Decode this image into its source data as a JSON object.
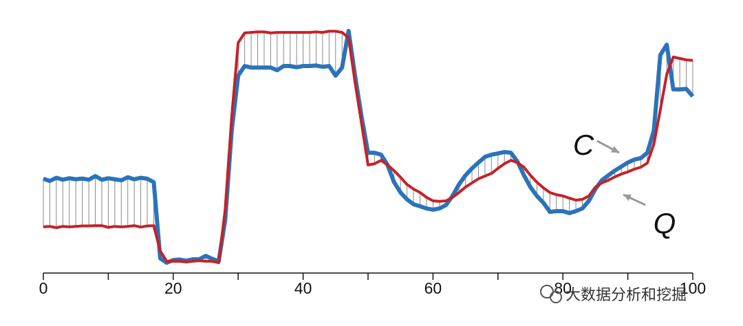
{
  "chart_data": {
    "type": "line",
    "x": [
      0,
      1,
      2,
      3,
      4,
      5,
      6,
      7,
      8,
      9,
      10,
      11,
      12,
      13,
      14,
      15,
      16,
      17,
      18,
      19,
      20,
      21,
      22,
      23,
      24,
      25,
      26,
      27,
      28,
      29,
      30,
      31,
      32,
      33,
      34,
      35,
      36,
      37,
      38,
      39,
      40,
      41,
      42,
      43,
      44,
      45,
      46,
      47,
      48,
      49,
      50,
      51,
      52,
      53,
      54,
      55,
      56,
      57,
      58,
      59,
      60,
      61,
      62,
      63,
      64,
      65,
      66,
      67,
      68,
      69,
      70,
      71,
      72,
      73,
      74,
      75,
      76,
      77,
      78,
      79,
      80,
      81,
      82,
      83,
      84,
      85,
      86,
      87,
      88,
      89,
      90,
      91,
      92,
      93,
      94,
      95,
      96,
      97,
      98,
      99,
      100
    ],
    "series": [
      {
        "name": "C",
        "color": "#2b73b9",
        "values": [
          3.84,
          3.75,
          3.88,
          3.8,
          3.86,
          3.82,
          3.85,
          3.8,
          3.95,
          3.8,
          3.86,
          3.82,
          3.78,
          3.9,
          3.82,
          3.88,
          3.84,
          3.7,
          0.6,
          0.42,
          0.53,
          0.55,
          0.5,
          0.56,
          0.56,
          0.7,
          0.58,
          0.48,
          2.16,
          5.8,
          8.04,
          8.43,
          8.37,
          8.37,
          8.37,
          8.37,
          8.26,
          8.43,
          8.43,
          8.38,
          8.43,
          8.43,
          8.45,
          8.4,
          8.43,
          8.04,
          8.37,
          9.86,
          8.04,
          6.36,
          4.9,
          4.9,
          4.82,
          4.4,
          3.7,
          3.28,
          3.0,
          2.8,
          2.72,
          2.63,
          2.58,
          2.63,
          2.77,
          3.14,
          3.61,
          3.98,
          4.26,
          4.5,
          4.73,
          4.82,
          4.87,
          4.93,
          4.9,
          4.54,
          3.98,
          3.5,
          3.14,
          2.86,
          2.49,
          2.52,
          2.52,
          2.44,
          2.52,
          2.63,
          2.94,
          3.42,
          3.78,
          3.98,
          4.17,
          4.34,
          4.5,
          4.62,
          4.68,
          4.9,
          5.8,
          8.88,
          9.3,
          7.48,
          7.48,
          7.5,
          7.2
        ]
      },
      {
        "name": "Q",
        "color": "#c62128",
        "values": [
          1.88,
          1.9,
          1.85,
          1.9,
          1.88,
          1.9,
          1.92,
          1.92,
          1.93,
          1.93,
          1.86,
          1.9,
          1.88,
          1.9,
          1.93,
          1.87,
          1.92,
          1.93,
          0.9,
          0.48,
          0.48,
          0.48,
          0.45,
          0.48,
          0.5,
          0.48,
          0.48,
          0.42,
          2.58,
          6.36,
          9.38,
          9.78,
          9.8,
          9.82,
          9.82,
          9.78,
          9.8,
          9.8,
          9.8,
          9.8,
          9.8,
          9.8,
          9.82,
          9.8,
          9.85,
          9.85,
          9.8,
          9.58,
          7.76,
          6.08,
          4.4,
          4.45,
          4.59,
          4.4,
          4.17,
          3.9,
          3.61,
          3.42,
          3.28,
          3.08,
          2.94,
          2.92,
          2.94,
          3.08,
          3.28,
          3.5,
          3.67,
          3.84,
          3.95,
          4.06,
          4.26,
          4.45,
          4.59,
          4.5,
          4.31,
          3.98,
          3.7,
          3.47,
          3.28,
          3.19,
          3.14,
          3.05,
          2.97,
          3.0,
          3.14,
          3.5,
          3.67,
          3.78,
          3.92,
          4.03,
          4.12,
          4.23,
          4.31,
          4.48,
          5.24,
          6.64,
          8.1,
          8.8,
          8.74,
          8.68,
          8.66
        ]
      }
    ],
    "xlim": [
      0,
      100
    ],
    "xticks": [
      0,
      20,
      40,
      60,
      80,
      100
    ],
    "xminor_ticks": [
      10,
      30,
      50,
      70,
      90
    ],
    "ylim": [
      0,
      10
    ],
    "connector_color": "#888888",
    "annotations": [
      {
        "text": "C",
        "series": 0
      },
      {
        "text": "Q",
        "series": 1
      }
    ],
    "watermark": "大数据分析和挖掘"
  }
}
